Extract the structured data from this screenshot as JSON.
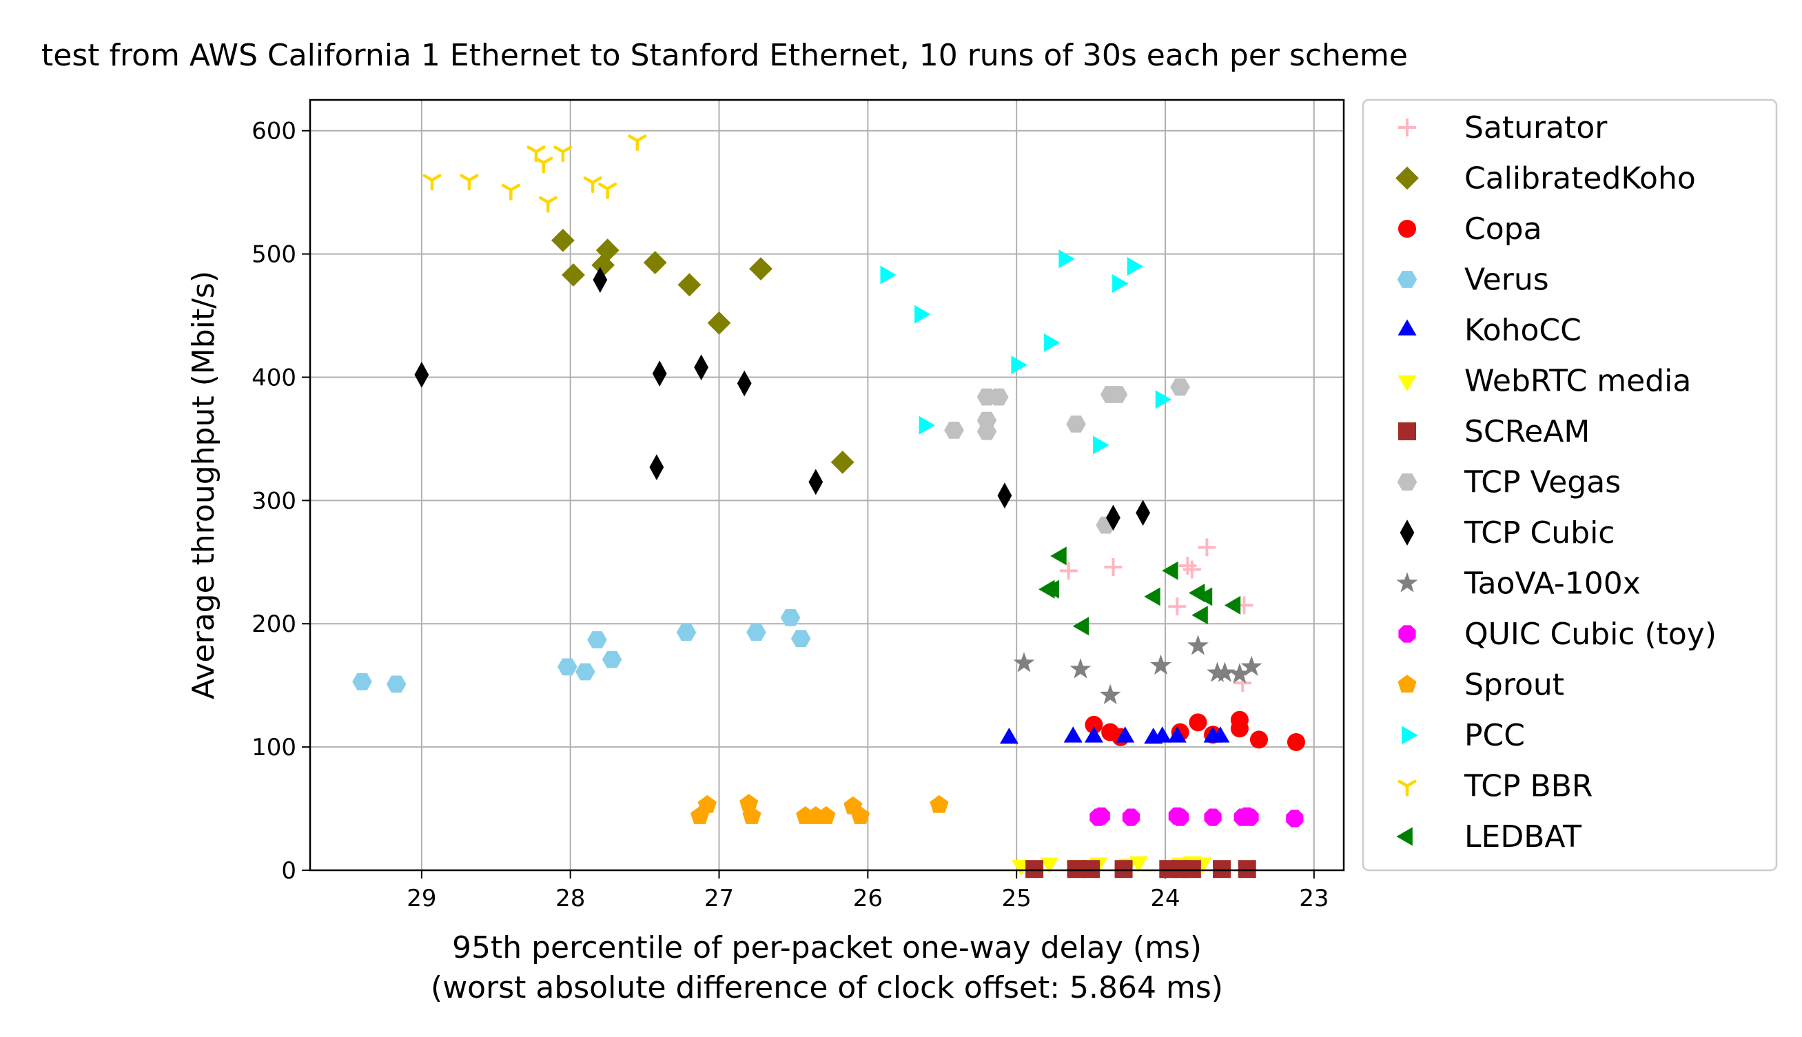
{
  "chart_data": {
    "type": "scatter",
    "title": "test from AWS California 1 Ethernet to Stanford Ethernet, 10 runs of 30s each per scheme",
    "xlabel": "95th percentile of per-packet one-way delay (ms)",
    "xlabel2": "(worst absolute difference of clock offset: 5.864 ms)",
    "ylabel": "Average throughput (Mbit/s)",
    "xlim": [
      29.75,
      22.8
    ],
    "ylim": [
      0,
      625
    ],
    "x_inverted": true,
    "grid": true,
    "legend_position": "outside-right",
    "xticks": [
      29,
      28,
      27,
      26,
      25,
      24,
      23
    ],
    "yticks": [
      0,
      100,
      200,
      300,
      400,
      500,
      600
    ],
    "series": [
      {
        "name": "Saturator",
        "marker": "plus",
        "color": "#ffb6c1",
        "points": [
          [
            24.65,
            243
          ],
          [
            24.35,
            246
          ],
          [
            23.92,
            214
          ],
          [
            23.85,
            247
          ],
          [
            23.82,
            244
          ],
          [
            23.72,
            262
          ],
          [
            23.47,
            215
          ],
          [
            23.48,
            152
          ]
        ]
      },
      {
        "name": "CalibratedKoho",
        "marker": "diamond",
        "color": "#808000",
        "points": [
          [
            28.05,
            511
          ],
          [
            27.98,
            483
          ],
          [
            27.78,
            491
          ],
          [
            27.75,
            503
          ],
          [
            27.43,
            493
          ],
          [
            27.2,
            475
          ],
          [
            27.0,
            444
          ],
          [
            26.72,
            488
          ],
          [
            26.17,
            331
          ]
        ]
      },
      {
        "name": "Copa",
        "marker": "circle",
        "color": "#ff0000",
        "points": [
          [
            24.48,
            118
          ],
          [
            24.37,
            112
          ],
          [
            24.3,
            108
          ],
          [
            23.9,
            112
          ],
          [
            23.78,
            120
          ],
          [
            23.68,
            110
          ],
          [
            23.5,
            122
          ],
          [
            23.5,
            115
          ],
          [
            23.37,
            106
          ],
          [
            23.12,
            104
          ]
        ]
      },
      {
        "name": "Verus",
        "marker": "hexagon",
        "color": "#87ceeb",
        "points": [
          [
            29.4,
            153
          ],
          [
            29.17,
            151
          ],
          [
            28.02,
            165
          ],
          [
            27.9,
            161
          ],
          [
            27.82,
            187
          ],
          [
            27.72,
            171
          ],
          [
            27.22,
            193
          ],
          [
            26.75,
            193
          ],
          [
            26.52,
            205
          ],
          [
            26.45,
            188
          ]
        ]
      },
      {
        "name": "KohoCC",
        "marker": "triangle-up",
        "color": "#0000ff",
        "points": [
          [
            25.05,
            107
          ],
          [
            24.62,
            108
          ],
          [
            24.48,
            108
          ],
          [
            24.27,
            108
          ],
          [
            24.08,
            107
          ],
          [
            24.02,
            108
          ],
          [
            23.92,
            108
          ],
          [
            23.68,
            108
          ],
          [
            23.63,
            108
          ]
        ]
      },
      {
        "name": "WebRTC media",
        "marker": "triangle-down",
        "color": "#ffff00",
        "points": [
          [
            24.97,
            4
          ],
          [
            24.78,
            6
          ],
          [
            24.58,
            4
          ],
          [
            24.45,
            6
          ],
          [
            24.25,
            5
          ],
          [
            24.18,
            7
          ],
          [
            23.9,
            6
          ],
          [
            23.82,
            7
          ],
          [
            23.75,
            6
          ]
        ]
      },
      {
        "name": "SCReAM",
        "marker": "square",
        "color": "#a52a2a",
        "points": [
          [
            24.88,
            1
          ],
          [
            24.6,
            1
          ],
          [
            24.5,
            1
          ],
          [
            24.28,
            1
          ],
          [
            23.98,
            1
          ],
          [
            23.9,
            1
          ],
          [
            23.82,
            1
          ],
          [
            23.62,
            1
          ],
          [
            23.45,
            1
          ]
        ]
      },
      {
        "name": "TCP Vegas",
        "marker": "hexagon",
        "color": "#c0c0c0",
        "points": [
          [
            25.2,
            384
          ],
          [
            25.12,
            384
          ],
          [
            25.2,
            365
          ],
          [
            25.2,
            356
          ],
          [
            25.42,
            357
          ],
          [
            24.6,
            362
          ],
          [
            24.37,
            386
          ],
          [
            24.32,
            386
          ],
          [
            23.9,
            392
          ],
          [
            24.4,
            280
          ]
        ]
      },
      {
        "name": "TCP Cubic",
        "marker": "thin-diamond",
        "color": "#000000",
        "points": [
          [
            29.0,
            402
          ],
          [
            27.8,
            479
          ],
          [
            27.4,
            403
          ],
          [
            27.42,
            327
          ],
          [
            27.12,
            408
          ],
          [
            26.83,
            395
          ],
          [
            26.35,
            315
          ],
          [
            25.08,
            304
          ],
          [
            24.35,
            286
          ],
          [
            24.15,
            290
          ]
        ]
      },
      {
        "name": "TaoVA-100x",
        "marker": "star",
        "color": "#808080",
        "points": [
          [
            24.95,
            168
          ],
          [
            24.57,
            163
          ],
          [
            24.37,
            142
          ],
          [
            24.03,
            166
          ],
          [
            23.78,
            182
          ],
          [
            23.65,
            160
          ],
          [
            23.6,
            160
          ],
          [
            23.5,
            159
          ],
          [
            23.42,
            165
          ]
        ]
      },
      {
        "name": "QUIC Cubic (toy)",
        "marker": "octagon",
        "color": "#ff00ff",
        "points": [
          [
            24.45,
            43
          ],
          [
            24.43,
            44
          ],
          [
            24.23,
            43
          ],
          [
            23.92,
            44
          ],
          [
            23.9,
            43
          ],
          [
            23.68,
            43
          ],
          [
            23.48,
            43
          ],
          [
            23.45,
            44
          ],
          [
            23.43,
            43
          ],
          [
            23.13,
            42
          ]
        ]
      },
      {
        "name": "Sprout",
        "marker": "pentagon",
        "color": "#ffa500",
        "points": [
          [
            27.13,
            44
          ],
          [
            27.08,
            53
          ],
          [
            26.8,
            54
          ],
          [
            26.78,
            44
          ],
          [
            26.42,
            44
          ],
          [
            26.35,
            44
          ],
          [
            26.28,
            44
          ],
          [
            26.1,
            52
          ],
          [
            26.05,
            44
          ],
          [
            25.52,
            53
          ]
        ]
      },
      {
        "name": "PCC",
        "marker": "triangle-right",
        "color": "#00ffff",
        "points": [
          [
            25.88,
            483
          ],
          [
            25.65,
            451
          ],
          [
            25.62,
            361
          ],
          [
            25.0,
            410
          ],
          [
            24.78,
            428
          ],
          [
            24.68,
            496
          ],
          [
            24.32,
            476
          ],
          [
            24.22,
            490
          ],
          [
            24.03,
            382
          ],
          [
            24.45,
            345
          ]
        ]
      },
      {
        "name": "TCP BBR",
        "marker": "tri-down",
        "color": "#ffd700",
        "points": [
          [
            28.93,
            560
          ],
          [
            28.68,
            560
          ],
          [
            28.4,
            552
          ],
          [
            28.23,
            583
          ],
          [
            28.18,
            574
          ],
          [
            28.15,
            542
          ],
          [
            28.05,
            583
          ],
          [
            27.85,
            558
          ],
          [
            27.75,
            553
          ],
          [
            27.55,
            592
          ]
        ]
      },
      {
        "name": "LEDBAT",
        "marker": "triangle-left",
        "color": "#008000",
        "points": [
          [
            24.78,
            228
          ],
          [
            24.75,
            228
          ],
          [
            24.7,
            255
          ],
          [
            24.55,
            198
          ],
          [
            24.07,
            222
          ],
          [
            23.95,
            243
          ],
          [
            23.77,
            225
          ],
          [
            23.75,
            207
          ],
          [
            23.72,
            222
          ],
          [
            23.53,
            215
          ]
        ]
      }
    ]
  }
}
